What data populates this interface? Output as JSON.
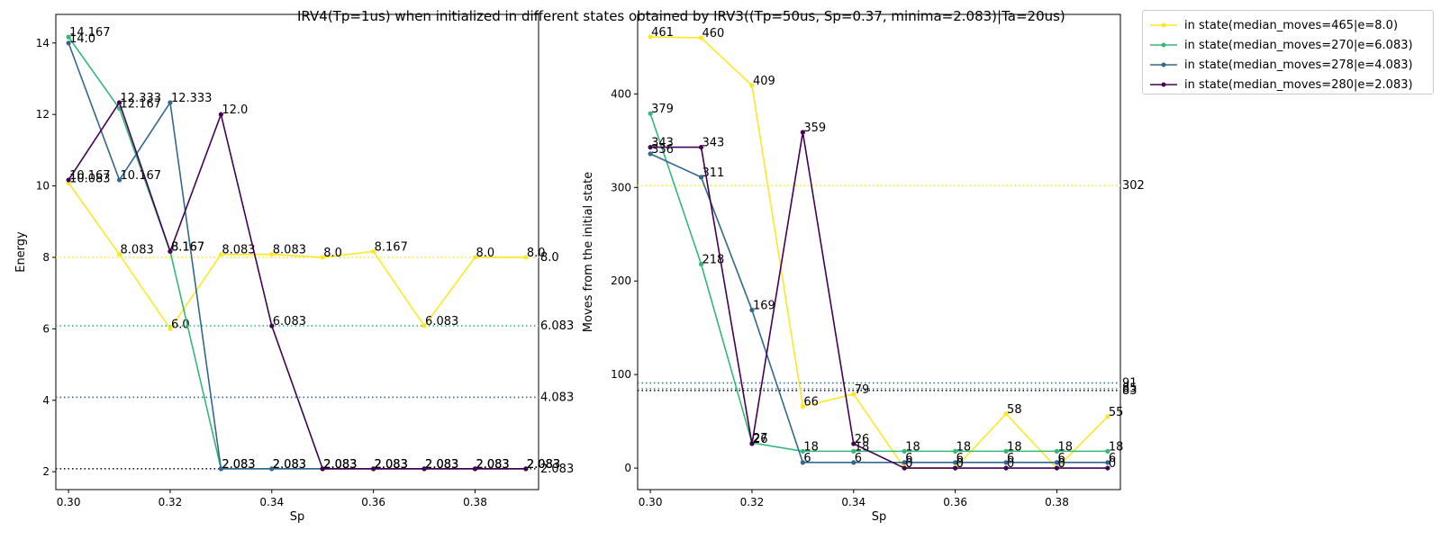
{
  "title": "IRV4(Tp=1us) when initialized in different states obtained by IRV3((Tp=50us, Sp=0.37, minima=2.083)|Ta=20us)",
  "colors": {
    "s465": "#fde725",
    "s270": "#35b779",
    "s278": "#31688e",
    "s280": "#440154"
  },
  "legend": [
    {
      "label": "in state(median_moves=465|e=8.0)",
      "color": "#fde725"
    },
    {
      "label": "in state(median_moves=270|e=6.083)",
      "color": "#35b779"
    },
    {
      "label": "in state(median_moves=278|e=4.083)",
      "color": "#31688e"
    },
    {
      "label": "in state(median_moves=280|e=2.083)",
      "color": "#440154"
    }
  ],
  "chart_data": [
    {
      "type": "line",
      "xlabel": "Sp",
      "ylabel": "Energy",
      "x": [
        0.3,
        0.31,
        0.32,
        0.33,
        0.34,
        0.35,
        0.36,
        0.37,
        0.38,
        0.39
      ],
      "xlim": [
        0.2975,
        0.3925
      ],
      "ylim": [
        1.5,
        14.8
      ],
      "xticks": [
        "0.30",
        "0.32",
        "0.34",
        "0.36",
        "0.38"
      ],
      "yticks": [
        "2",
        "4",
        "6",
        "8",
        "10",
        "12",
        "14"
      ],
      "series": [
        {
          "name": "in state(median_moves=465|e=8.0)",
          "color": "#fde725",
          "values": [
            10.083,
            8.083,
            6.0,
            8.083,
            8.083,
            8.0,
            8.167,
            6.083,
            8.0,
            8.0
          ],
          "labels": [
            "10.083",
            "8.083",
            "6.0",
            "8.083",
            "8.083",
            "8.0",
            "8.167",
            "6.083",
            "8.0",
            "8.0"
          ],
          "hline": 8.0,
          "hline_label": "8.0"
        },
        {
          "name": "in state(median_moves=270|e=6.083)",
          "color": "#35b779",
          "values": [
            14.167,
            12.167,
            8.167,
            2.083,
            2.083,
            2.083,
            2.083,
            2.083,
            2.083,
            2.083
          ],
          "labels": [
            "14.167",
            "12.167",
            "8.167",
            "2.083",
            "2.083",
            "2.083",
            "2.083",
            "2.083",
            "2.083",
            "2.083"
          ],
          "hline": 6.083,
          "hline_label": "6.083"
        },
        {
          "name": "in state(median_moves=278|e=4.083)",
          "color": "#31688e",
          "values": [
            14.0,
            10.167,
            12.333,
            2.083,
            2.083,
            2.083,
            2.083,
            2.083,
            2.083,
            2.083
          ],
          "labels": [
            "14.0",
            "10.167",
            "12.333",
            "2.083",
            "2.083",
            "2.083",
            "2.083",
            "2.083",
            "2.083",
            "2.083"
          ],
          "hline": 4.083,
          "hline_label": "4.083"
        },
        {
          "name": "in state(median_moves=280|e=2.083)",
          "color": "#440154",
          "values": [
            10.167,
            12.333,
            8.167,
            12.0,
            6.083,
            2.083,
            2.083,
            2.083,
            2.083,
            2.083
          ],
          "labels": [
            "10.167",
            "12.333",
            "8.167",
            "12.0",
            "6.083",
            "2.083",
            "2.083",
            "2.083",
            "2.083",
            "2.083"
          ],
          "hline": 2.083,
          "hline_label": "2.083"
        }
      ]
    },
    {
      "type": "line",
      "xlabel": "Sp",
      "ylabel": "Moves from the initial state",
      "x": [
        0.3,
        0.31,
        0.32,
        0.33,
        0.34,
        0.35,
        0.36,
        0.37,
        0.38,
        0.39
      ],
      "xlim": [
        0.2975,
        0.3925
      ],
      "ylim": [
        -23,
        485
      ],
      "xticks": [
        "0.30",
        "0.32",
        "0.34",
        "0.36",
        "0.38"
      ],
      "yticks": [
        "0",
        "100",
        "200",
        "300",
        "400"
      ],
      "series": [
        {
          "name": "in state(median_moves=465|e=8.0)",
          "color": "#fde725",
          "values": [
            461,
            460,
            409,
            66,
            79,
            0,
            0,
            58,
            0,
            55
          ],
          "labels": [
            "461",
            "460",
            "409",
            "66",
            "79",
            "0",
            "0",
            "58",
            "0",
            "55"
          ],
          "hline": 302,
          "hline_label": "302"
        },
        {
          "name": "in state(median_moves=270|e=6.083)",
          "color": "#35b779",
          "values": [
            379,
            218,
            27,
            18,
            18,
            18,
            18,
            18,
            18,
            18
          ],
          "labels": [
            "379",
            "218",
            "27",
            "18",
            "18",
            "18",
            "18",
            "18",
            "18",
            "18"
          ],
          "hline": 85,
          "hline_label": "85"
        },
        {
          "name": "in state(median_moves=278|e=4.083)",
          "color": "#31688e",
          "values": [
            336,
            311,
            169,
            6,
            6,
            6,
            6,
            6,
            6,
            6
          ],
          "labels": [
            "336",
            "311",
            "169",
            "6",
            "6",
            "6",
            "6",
            "6",
            "6",
            "6"
          ],
          "hline": 91,
          "hline_label": "91"
        },
        {
          "name": "in state(median_moves=280|e=2.083)",
          "color": "#440154",
          "values": [
            343,
            343,
            26,
            359,
            26,
            0,
            0,
            0,
            0,
            0
          ],
          "labels": [
            "343",
            "343",
            "26",
            "359",
            "26",
            "0",
            "0",
            "0",
            "0",
            "0"
          ],
          "hline": 83,
          "hline_label": "83"
        }
      ]
    }
  ]
}
